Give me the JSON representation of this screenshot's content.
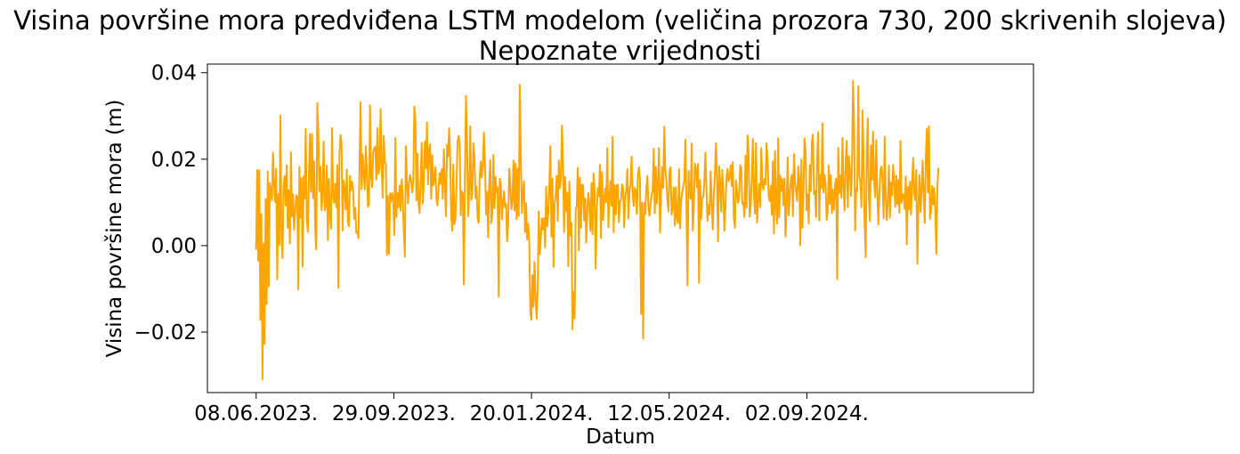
{
  "chart_data": {
    "type": "line",
    "title": "Visina površine mora predviđena LSTM modelom (veličina prozora 730, 200 skrivenih slojeva)",
    "subtitle": "Nepoznate vrijednosti",
    "xlabel": "Datum",
    "ylabel": "Visina površine mora (m)",
    "x_start": "08.06.2023.",
    "x_end": "19.12.2024.",
    "xticks": [
      {
        "date": "08.06.2023.",
        "label": "08.06.2023."
      },
      {
        "date": "29.09.2023.",
        "label": "29.09.2023."
      },
      {
        "date": "20.01.2024.",
        "label": "20.01.2024."
      },
      {
        "date": "12.05.2024.",
        "label": "12.05.2024."
      },
      {
        "date": "02.09.2024.",
        "label": "02.09.2024."
      }
    ],
    "yticks": [
      {
        "value": -0.02,
        "label": "−0.02"
      },
      {
        "value": 0.0,
        "label": "0.00"
      },
      {
        "value": 0.02,
        "label": "0.02"
      },
      {
        "value": 0.04,
        "label": "0.04"
      }
    ],
    "ylim": [
      -0.034,
      0.042
    ],
    "xlim": [
      "29.04.2023.",
      "07.03.2025."
    ],
    "grid": false,
    "series": [
      {
        "color": "#ffa500",
        "values": [
          -0.001,
          0.0175,
          -0.0035,
          0.0175,
          -0.0172,
          0.0073,
          -0.031,
          0.0005,
          -0.0228,
          0.0108,
          -0.0135,
          0.0172,
          -0.0094,
          0.0145,
          0.0125,
          0.0104,
          0.0215,
          0.0142,
          0.0101,
          0.0178,
          -0.0078,
          0.0119,
          0.0002,
          0.0301,
          0.0025,
          -0.0029,
          0.0136,
          0.0161,
          0.0093,
          0.0186,
          0.0041,
          0.0128,
          0.0005,
          0.0216,
          0.0067,
          0.0119,
          0.0037,
          0.0077,
          0.0117,
          0.0114,
          -0.0101,
          0.0182,
          0.0065,
          0.0156,
          -0.0049,
          0.016,
          0.0109,
          0.027,
          0.0063,
          0.0032,
          0.0152,
          0.0258,
          0.0124,
          0.0258,
          0.011,
          0.0195,
          0.0039,
          -0.0009,
          0.033,
          0.0262,
          0.0126,
          0.0183,
          0.0082,
          0.0115,
          0.0241,
          0.0081,
          0.0092,
          0.0185,
          0.0013,
          0.0154,
          0.0066,
          0.0039,
          0.0272,
          0.0113,
          0.0099,
          0.0143,
          0.0089,
          0.0186,
          -0.0098,
          0.0211,
          0.0256,
          0.0238,
          0.0035,
          0.0151,
          0.0131,
          0.0084,
          0.0176,
          0.0054,
          0.0045,
          0.0161,
          0.0128,
          0.0148,
          0.0127,
          0.0062,
          0.0087,
          0.003,
          0.0033,
          0.0017,
          0.0181,
          0.0332,
          0.0131,
          0.0211,
          0.0168,
          0.013,
          0.023,
          0.0171,
          0.009,
          0.0096,
          0.0325,
          0.0162,
          0.0135,
          0.0216,
          0.0226,
          0.0229,
          0.0153,
          0.0272,
          0.0166,
          0.0178,
          0.0316,
          0.0189,
          0.0111,
          0.0254,
          0.0192,
          0.0189,
          -0.0022,
          0.0115,
          -0.0019,
          0.0121,
          0.0101,
          0.0122,
          0.0111,
          0.0024,
          0.0249,
          0.0066,
          0.0122,
          0.0089,
          0.0139,
          0.0081,
          0.0153,
          0.0115,
          0.0036,
          -0.0026,
          0.023,
          0.0147,
          0.0098,
          0.0146,
          0.0164,
          0.015,
          0.0123,
          0.0146,
          0.0322,
          0.0291,
          0.0105,
          0.0213,
          0.0097,
          0.0075,
          0.015,
          0.0238,
          0.0097,
          0.0146,
          0.0241,
          0.0179,
          0.0285,
          0.0142,
          0.0221,
          0.0235,
          0.0108,
          0.0209,
          0.0139,
          0.0151,
          0.0182,
          0.0107,
          0.0093,
          0.0134,
          0.0168,
          0.0143,
          0.0177,
          0.0108,
          0.0223,
          0.0141,
          0.0068,
          0.0233,
          0.0206,
          0.0272,
          0.0202,
          0.0067,
          0.0034,
          0.0188,
          0.0049,
          0.0064,
          0.0144,
          0.0241,
          0.0254,
          0.0238,
          0.007,
          0.0126,
          0.0121,
          -0.009,
          0.0156,
          0.0346,
          0.0243,
          0.0068,
          0.0124,
          0.0276,
          0.0106,
          0.0123,
          0.0237,
          0.0206,
          0.011,
          0.0137,
          0.0064,
          0.0053,
          0.016,
          0.0195,
          0.0157,
          0.0187,
          0.0262,
          0.0188,
          0.0072,
          0.0125,
          0.0019,
          0.0141,
          0.0198,
          0.0052,
          0.0076,
          0.021,
          0.0086,
          0.0159,
          0.0123,
          0.0135,
          -0.0118,
          0.0155,
          0.0142,
          0.0061,
          0.01,
          0.0126,
          0.0089,
          0.0097,
          0.001,
          0.0054,
          0.0178,
          0.0142,
          0.0084,
          0.0103,
          0.0197,
          0.0081,
          0.019,
          0.0061,
          0.0178,
          0.0069,
          0.0372,
          0.0204,
          0.0075,
          0.0128,
          0.0149,
          0.0031,
          0.0098,
          0.0014,
          0.0051,
          0.0009,
          -0.0152,
          -0.0172,
          -0.0068,
          -0.0141,
          -0.0038,
          -0.0121,
          -0.0169,
          -0.0102,
          0.0079,
          -0.002,
          0.0021,
          0.0063,
          0.0037,
          0.0064,
          -0.0004,
          0.0136,
          0.0045,
          0.0075,
          0.014,
          0.023,
          0.0021,
          0.0155,
          -0.0049,
          0.0095,
          0.0117,
          0.0161,
          0.0057,
          0.0197,
          0.0133,
          0.0151,
          0.0278,
          0.0191,
          0.0031,
          0.0159,
          0.008,
          0.0123,
          -0.0048,
          0.0148,
          0.0023,
          0.0052,
          -0.0194,
          -0.0107,
          -0.0168,
          0.0082,
          0.0093,
          0.018,
          -0.0011,
          0.0157,
          0.0041,
          0.0141,
          0.014,
          0.0058,
          0.0109,
          0.0007,
          0.0079,
          0.0122,
          0.0092,
          0.0034,
          0.0145,
          0.0026,
          0.0167,
          0.0124,
          -0.0053,
          0.0084,
          0.0133,
          0.0115,
          0.0187,
          0.0017,
          0.017,
          0.0059,
          0.0104,
          0.0132,
          0.01,
          0.0225,
          0.0042,
          0.0108,
          0.015,
          0.0092,
          0.0252,
          0.0031,
          0.014,
          0.0072,
          0.014,
          0.0141,
          0.0054,
          0.0103,
          0.0105,
          0.0142,
          0.0134,
          0.0042,
          0.0115,
          0.0126,
          0.0177,
          0.0063,
          0.0125,
          0.0142,
          0.0206,
          0.012,
          0.0092,
          0.0134,
          0.0126,
          0.0073,
          0.0164,
          0.0181,
          0.0153,
          -0.0158,
          0.01,
          -0.0215,
          0.0098,
          0.0073,
          0.0133,
          0.0161,
          0.0088,
          0.0069,
          0.0097,
          0.0117,
          0.0127,
          0.0224,
          0.0075,
          0.0182,
          0.0098,
          0.014,
          0.0226,
          0.003,
          0.0127,
          0.0182,
          0.0133,
          0.0275,
          0.0174,
          0.0151,
          0.0106,
          0.0079,
          0.0174,
          0.0181,
          0.0072,
          0.0086,
          0.0134,
          0.0047,
          0.0135,
          0.0062,
          0.0052,
          0.0177,
          0.004,
          0.0105,
          0.0123,
          0.0137,
          0.015,
          0.0245,
          0.0108,
          -0.0092,
          0.0173,
          0.0118,
          0.0108,
          0.0236,
          0.0035,
          0.0086,
          0.019,
          0.0179,
          0.0135,
          0.0189,
          -0.0086,
          0.0152,
          0.0062,
          0.0112,
          0.0113,
          0.0146,
          0.0215,
          0.0135,
          0.0057,
          0.0094,
          0.0072,
          0.0172,
          0.0097,
          0.0037,
          0.0121,
          0.0162,
          0.0237,
          0.0156,
          0.001,
          0.0184,
          0.0144,
          0.0079,
          0.0175,
          0.0129,
          0.0034,
          0.0088,
          0.0156,
          0.0178,
          0.0149,
          0.0157,
          0.0186,
          0.0138,
          0.0193,
          0.0064,
          0.0041,
          0.0151,
          0.0126,
          0.0099,
          0.0114,
          0.0186,
          0.018,
          0.0097,
          0.0099,
          0.0066,
          0.0208,
          0.0088,
          0.0255,
          0.0216,
          0.0067,
          0.0094,
          0.0156,
          0.0247,
          0.0122,
          0.0074,
          0.0237,
          0.0053,
          0.0108,
          0.0143,
          0.0089,
          0.0226,
          0.0143,
          0.0129,
          0.0154,
          0.0142,
          0.0237,
          0.0199,
          0.0114,
          0.0103,
          0.0139,
          0.0071,
          0.0195,
          0.0028,
          0.0219,
          0.0085,
          0.0051,
          0.0248,
          0.0065,
          0.0162,
          0.0127,
          0.0154,
          0.0094,
          0.0155,
          0.0021,
          0.0095,
          0.0204,
          0.007,
          0.011,
          0.0152,
          0.0164,
          0.0068,
          0.0212,
          0.0145,
          0.0126,
          0.0103,
          0.0184,
          0.0156,
          0.0001,
          0.0199,
          0.0041,
          0.0121,
          0.0248,
          0.0219,
          0.0082,
          0.0119,
          0.0051,
          0.0186,
          0.0126,
          0.0239,
          0.0257,
          0.0119,
          0.0126,
          0.0066,
          0.0209,
          0.0263,
          0.0058,
          0.0163,
          0.0133,
          0.0283,
          0.0123,
          0.0164,
          0.0142,
          0.0059,
          0.0079,
          0.0185,
          0.0097,
          0.0163,
          0.0075,
          0.0129,
          0.0083,
          0.0143,
          0.0155,
          -0.0078,
          0.0226,
          0.0122,
          0.0162,
          0.0111,
          0.0249,
          0.0136,
          0.0081,
          0.0191,
          0.0242,
          0.0089,
          0.0207,
          0.0175,
          0.0115,
          0.0177,
          0.0381,
          0.0282,
          0.0035,
          0.0132,
          0.0126,
          0.0369,
          0.0159,
          0.0148,
          0.0089,
          0.0313,
          0.0198,
          0.0056,
          -0.0027,
          0.0218,
          0.0294,
          0.0109,
          0.0057,
          0.0232,
          0.0152,
          0.0264,
          0.0149,
          0.0112,
          0.0244,
          0.0125,
          0.0049,
          0.0122,
          0.0175,
          0.0183,
          0.0147,
          0.0063,
          0.0252,
          0.0112,
          0.0059,
          0.0102,
          0.0185,
          0.0065,
          0.0146,
          0.0116,
          0.0187,
          0.0147,
          0.009,
          0.0162,
          0.0096,
          0.0152,
          0.0076,
          0.0242,
          0.0099,
          0.0119,
          0.0117,
          0.0085,
          0.016,
          0.0003,
          0.0136,
          0.0084,
          0.0148,
          0.0072,
          0.014,
          0.0203,
          0.012,
          0.0106,
          0.0175,
          -0.0042,
          0.0087,
          0.0163,
          0.0078,
          0.0126,
          0.0197,
          0.0117,
          0.0052,
          0.0202,
          0.027,
          0.0123,
          0.0276,
          0.0062,
          0.0081,
          0.0138,
          0.0095,
          0.0134,
          0.0082,
          -0.0019,
          0.0139,
          0.018
        ]
      }
    ]
  }
}
